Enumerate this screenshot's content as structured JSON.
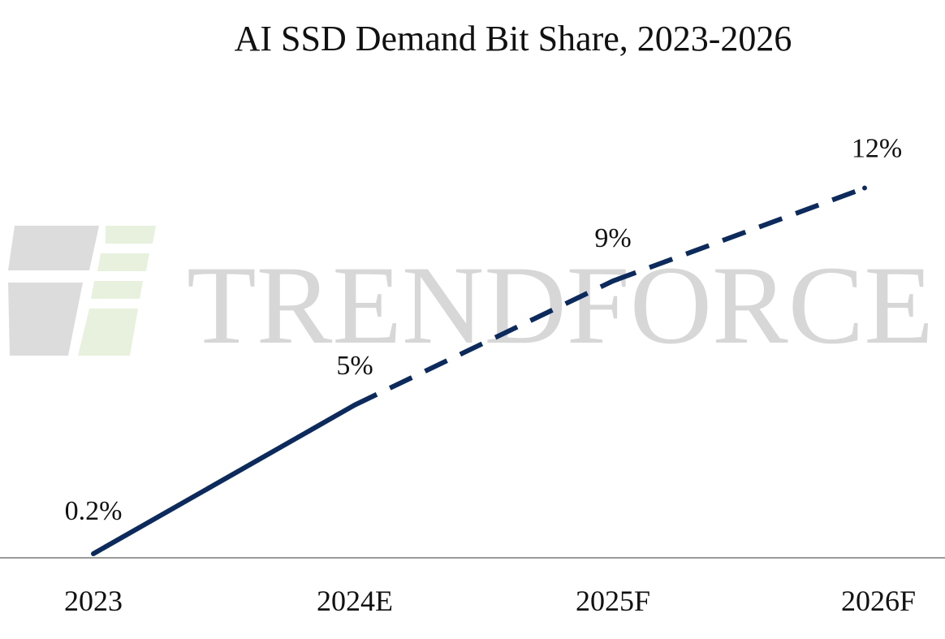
{
  "watermark": {
    "text": "TRENDFORCE"
  },
  "chart_data": {
    "type": "line",
    "title": "AI SSD Demand Bit Share, 2023-2026",
    "xlabel": "",
    "ylabel": "",
    "categories": [
      "2023",
      "2024E",
      "2025F",
      "2026F"
    ],
    "series": [
      {
        "name": "AI SSD Demand Bit Share",
        "values": [
          0.2,
          5,
          9,
          12
        ],
        "unit": "%",
        "labels": [
          "0.2%",
          "5%",
          "9%",
          "12%"
        ],
        "line_style": [
          "solid",
          "dashed",
          "dashed"
        ],
        "color": "#0d2a5c"
      }
    ],
    "ylim": [
      0,
      13
    ],
    "grid": false,
    "legend": "none",
    "axis_color": "#9a9a9a"
  }
}
